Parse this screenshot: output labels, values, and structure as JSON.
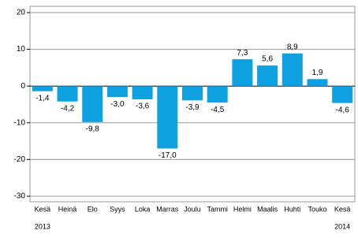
{
  "chart_data": {
    "type": "bar",
    "categories": [
      "Kesä",
      "Heinä",
      "Elo",
      "Syys",
      "Loka",
      "Marras",
      "Joulu",
      "Tammi",
      "Helmi",
      "Maalis",
      "Huhti",
      "Touko",
      "Kesä"
    ],
    "year_labels": [
      "2013",
      null,
      null,
      null,
      null,
      null,
      null,
      null,
      null,
      null,
      null,
      null,
      "2014"
    ],
    "values": [
      -1.4,
      -4.2,
      -9.8,
      -3.0,
      -3.6,
      -17.0,
      -3.9,
      -4.5,
      7.3,
      5.6,
      8.9,
      1.9,
      -4.6
    ],
    "value_labels": [
      "-1,4",
      "-4,2",
      "-9,8",
      "-3,0",
      "-3,6",
      "-17,0",
      "-3,9",
      "-4,5",
      "7,3",
      "5,6",
      "8,9",
      "1,9",
      "-4,6"
    ],
    "color": "#0ea0e0",
    "ylim": [
      -30,
      20
    ],
    "yticks": [
      -30,
      -20,
      -10,
      0,
      10,
      20
    ],
    "grid": true
  }
}
